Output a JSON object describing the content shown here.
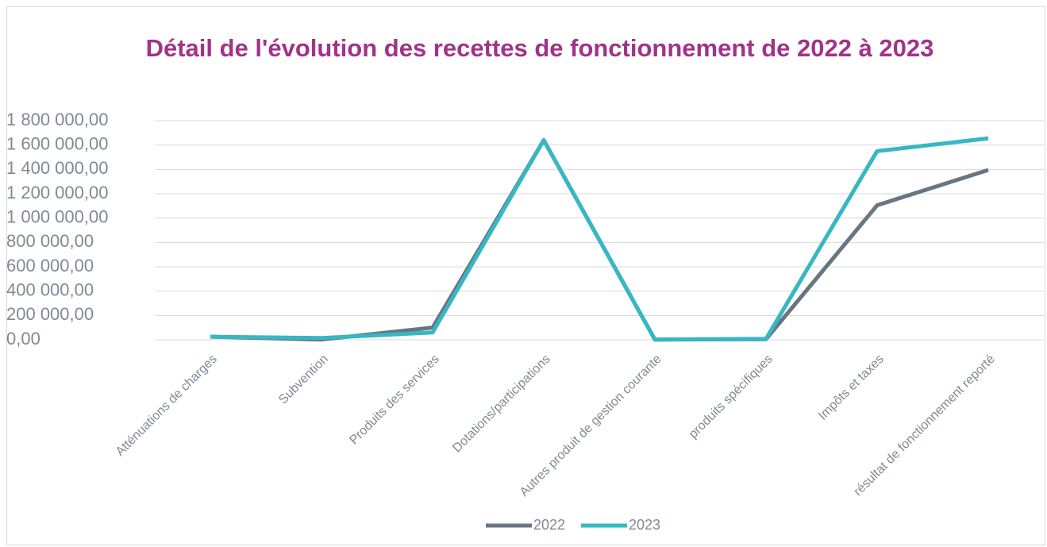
{
  "chart_data": {
    "type": "line",
    "title": "Détail de l'évolution des recettes de fonctionnement de 2022 à 2023",
    "categories": [
      "Atténuations de charges",
      "Subvention",
      "Produits des services",
      "Dotations/participations",
      "Autres produit de gestion courante",
      "produits spécifiques",
      "Impôts et taxes",
      "résultat de fonctionnement reporté"
    ],
    "series": [
      {
        "name": "2022",
        "color": "#687582",
        "values": [
          25000,
          2000,
          100000,
          1640000,
          2000,
          5000,
          1105000,
          1395000
        ]
      },
      {
        "name": "2023",
        "color": "#36b7c4",
        "values": [
          25000,
          15000,
          60000,
          1640000,
          2000,
          8000,
          1550000,
          1655000
        ]
      }
    ],
    "ylim": [
      0,
      1800000
    ],
    "yticks": [
      {
        "value": 0,
        "label": "0,00"
      },
      {
        "value": 200000,
        "label": "200 000,00"
      },
      {
        "value": 400000,
        "label": "400 000,00"
      },
      {
        "value": 600000,
        "label": "600 000,00"
      },
      {
        "value": 800000,
        "label": "800 000,00"
      },
      {
        "value": 1000000,
        "label": "1 000 000,00"
      },
      {
        "value": 1200000,
        "label": "1 200 000,00"
      },
      {
        "value": 1400000,
        "label": "1 400 000,00"
      },
      {
        "value": 1600000,
        "label": "1 600 000,00"
      },
      {
        "value": 1800000,
        "label": "1 800 000,00"
      }
    ],
    "grid": true,
    "legend": "bottom"
  }
}
